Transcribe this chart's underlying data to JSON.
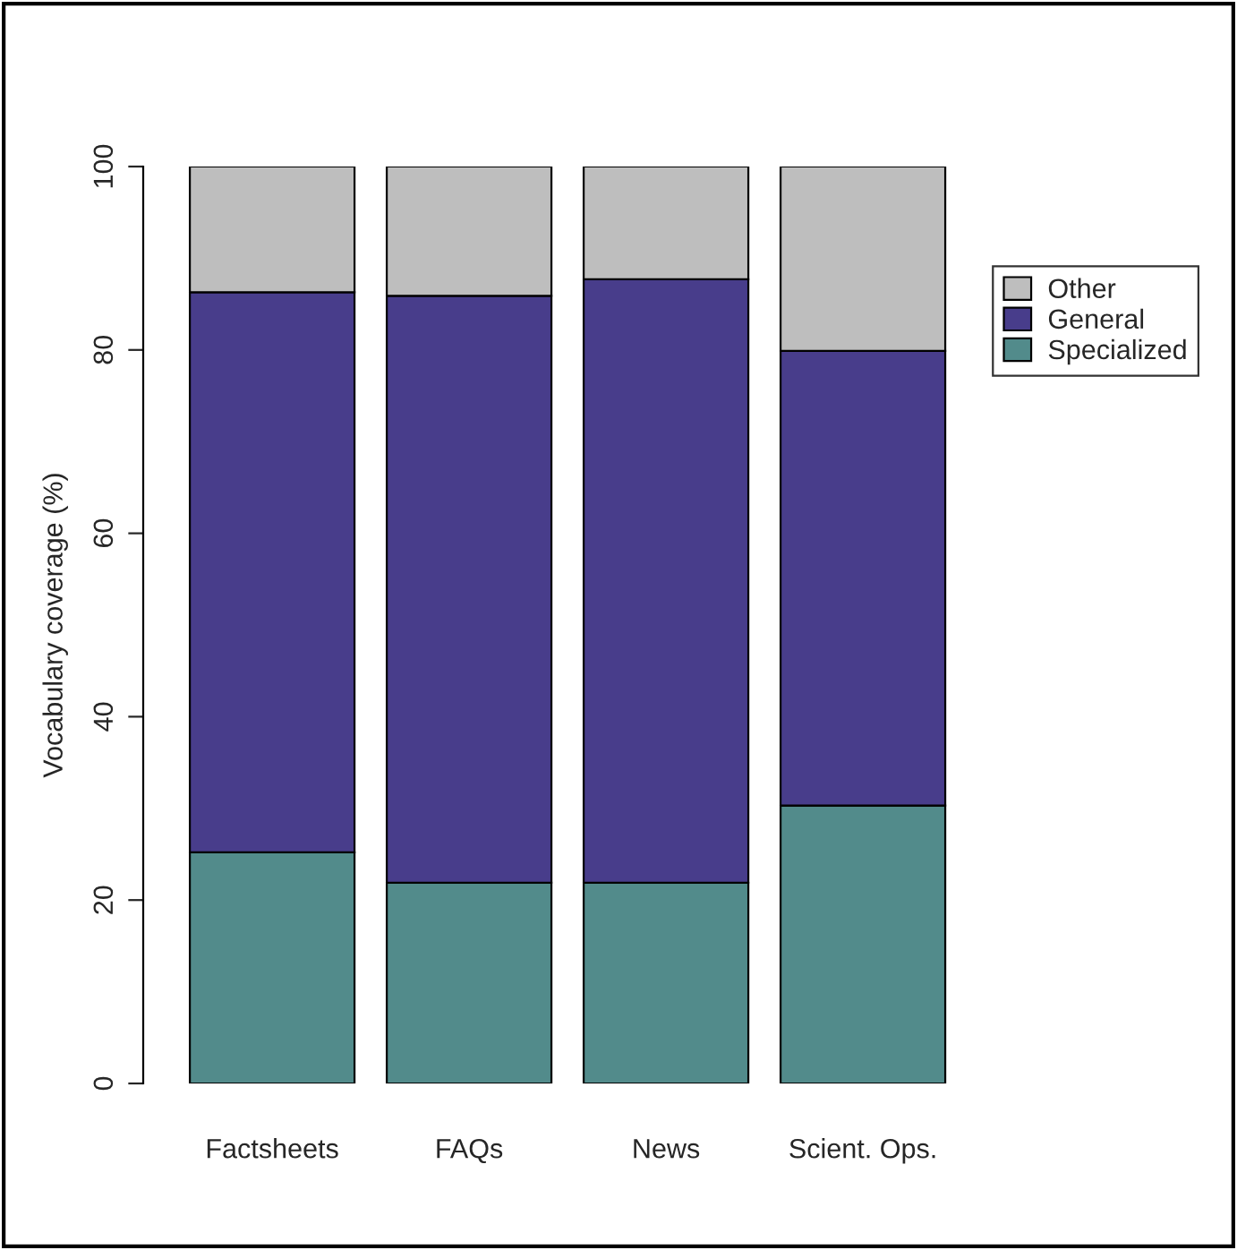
{
  "chart_data": {
    "type": "bar",
    "stacked": true,
    "ylabel": "Vocabulary coverage (%)",
    "categories": [
      "Factsheets",
      "FAQs",
      "News",
      "Scient. Ops."
    ],
    "series": [
      {
        "name": "Specialized",
        "color": "#528b8b",
        "values": [
          25.2,
          21.9,
          21.9,
          30.3
        ]
      },
      {
        "name": "General",
        "color": "#483d8b",
        "values": [
          61.1,
          64.0,
          65.8,
          49.6
        ]
      },
      {
        "name": "Other",
        "color": "#bebebe",
        "values": [
          13.7,
          14.1,
          12.3,
          20.1
        ]
      }
    ],
    "ylim": [
      0,
      100
    ],
    "yticks": [
      0,
      20,
      40,
      60,
      80,
      100
    ],
    "grid": false,
    "legend": "top right"
  }
}
